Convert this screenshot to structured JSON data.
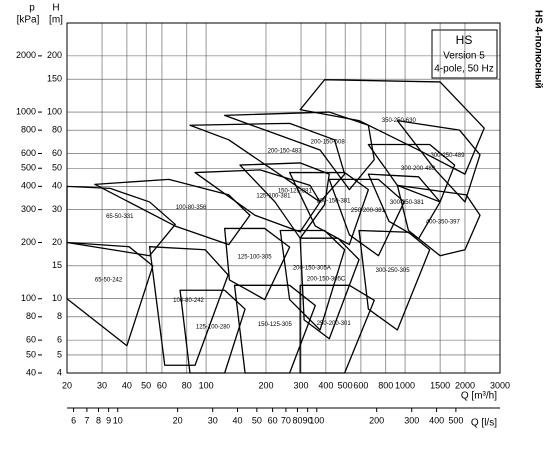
{
  "chart_data": {
    "type": "pump-selection",
    "title": "HS",
    "subtitle": "Version 5",
    "note": "4-pole, 50 Hz",
    "side_title": "HS 4-полюсный",
    "x_label": "Q [m³/h]",
    "x2_label": "Q [l/s]",
    "y_label_unit": "[m]",
    "y_label": "H",
    "y2_label": "p",
    "y2_label_unit": "[kPa]",
    "log_x": true,
    "log_y": true,
    "grid": true,
    "color": "#000000",
    "xlim": [
      20,
      3000
    ],
    "xticks": [
      20,
      30,
      40,
      50,
      60,
      80,
      100,
      200,
      300,
      400,
      500,
      600,
      800,
      1000,
      1500,
      2000,
      3000
    ],
    "x2lim": [
      5.56,
      833
    ],
    "x2ticks": [
      6,
      7,
      8,
      9,
      10,
      20,
      30,
      40,
      50,
      60,
      70,
      80,
      90,
      100,
      200,
      300,
      400,
      500
    ],
    "ylim": [
      4,
      300
    ],
    "yticks": [
      4,
      5,
      6,
      8,
      10,
      15,
      20,
      30,
      40,
      50,
      60,
      80,
      100,
      150,
      200
    ],
    "y2lim": [
      40,
      3000
    ],
    "y2ticks": [
      40,
      50,
      60,
      80,
      100,
      200,
      300,
      400,
      500,
      600,
      800,
      1000,
      2000
    ],
    "regions": [
      {
        "name": "65-50-331",
        "q": [
          20,
          33,
          52,
          70,
          52,
          20
        ],
        "h": [
          40,
          39,
          33,
          25,
          17,
          20
        ]
      },
      {
        "name": "65-50-242",
        "q": [
          20,
          41,
          54,
          40,
          20
        ],
        "h": [
          20,
          19,
          15,
          5.6,
          10
        ]
      },
      {
        "name": "100-80-356",
        "q": [
          27.6,
          65,
          130,
          166,
          130,
          70
        ],
        "h": [
          41,
          43.6,
          36,
          28,
          19.5,
          24.5
        ]
      },
      {
        "name": "100-80-242",
        "q": [
          52,
          99,
          129,
          88,
          62
        ],
        "h": [
          19,
          18.3,
          13.4,
          4.4,
          4.4
        ]
      },
      {
        "name": "125-100-381",
        "q": [
          88,
          187,
          333,
          374,
          297,
          176
        ],
        "h": [
          47.4,
          49,
          40.5,
          33,
          22.8,
          28
        ]
      },
      {
        "name": "125-100-305",
        "q": [
          124,
          197,
          263,
          197,
          131
        ],
        "h": [
          23.8,
          23.8,
          18.9,
          9.9,
          12.6
        ]
      },
      {
        "name": "125-100-280",
        "q": [
          74,
          124,
          157,
          124,
          83
        ],
        "h": [
          11.1,
          11.1,
          8.8,
          4,
          4
        ]
      },
      {
        "name": "150-125-381",
        "q": [
          148,
          297,
          416,
          394,
          297,
          222
        ],
        "h": [
          52,
          53.4,
          46.5,
          31.9,
          21.1,
          33
        ]
      },
      {
        "name": "150-125-305",
        "q": [
          139,
          263,
          354,
          263,
          157
        ],
        "h": [
          11.8,
          11.8,
          9.2,
          4,
          4
        ]
      },
      {
        "name": "200-150-483",
        "q": [
          83,
          263,
          442,
          497,
          374,
          130
        ],
        "h": [
          85,
          87,
          71,
          46.5,
          33,
          71
        ]
      },
      {
        "name": "200-150-381",
        "q": [
          263,
          497,
          654,
          525,
          354
        ],
        "h": [
          47.4,
          47.4,
          38.4,
          19.5,
          24.5
        ]
      },
      {
        "name": "200-150-305A",
        "q": [
          236,
          394,
          497,
          374,
          263
        ],
        "h": [
          23.2,
          23.2,
          18.3,
          6.8,
          9.9
        ]
      },
      {
        "name": "200-150-305C",
        "q": [
          297,
          460,
          587,
          416,
          311
        ],
        "h": [
          21.1,
          21.1,
          16.2,
          6.1,
          7.7
        ]
      },
      {
        "name": "250-200-301",
        "q": [
          297,
          525,
          700,
          497,
          297
        ],
        "h": [
          11.8,
          11.8,
          9.8,
          4,
          4
        ]
      },
      {
        "name": "250-200-381",
        "q": [
          416,
          735,
          990,
          735,
          525
        ],
        "h": [
          43.6,
          43.6,
          33,
          17,
          22
        ]
      },
      {
        "name": "200-150-508",
        "q": [
          124,
          416,
          654,
          700,
          525,
          374
        ],
        "h": [
          96,
          100,
          85,
          55.6,
          38.4,
          62.6
        ]
      },
      {
        "name": "350-250-630",
        "q": [
          297,
          394,
          1500,
          2500,
          2000,
          1170,
          587
        ],
        "h": [
          103,
          149,
          145,
          82,
          46.5,
          62.6,
          90
        ]
      },
      {
        "name": "300-200-489",
        "q": [
          654,
          1330,
          1775,
          1500,
          915
        ],
        "h": [
          67,
          67,
          52,
          33,
          40.5
        ]
      },
      {
        "name": "300-250-489",
        "q": [
          915,
          1880,
          2380,
          2000,
          1420
        ],
        "h": [
          90,
          80,
          59,
          33,
          49
        ]
      },
      {
        "name": "300-250-381",
        "q": [
          654,
          1170,
          1500,
          1170,
          830
        ],
        "h": [
          46.5,
          45,
          33,
          21,
          26
        ]
      },
      {
        "name": "300-250-305",
        "q": [
          587,
          1040,
          1330,
          915,
          654
        ],
        "h": [
          23.2,
          22.7,
          18.3,
          6.8,
          8.8
        ]
      },
      {
        "name": "400-350-397",
        "q": [
          915,
          2030,
          2380,
          2000,
          1500,
          1040
        ],
        "h": [
          40.5,
          36,
          28,
          18.3,
          17,
          23.2
        ]
      }
    ]
  }
}
